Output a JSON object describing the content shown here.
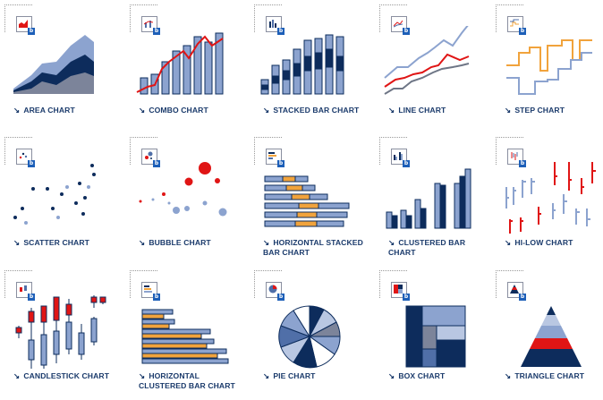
{
  "charts": [
    {
      "label": "AREA CHART",
      "icon": "area-chart-icon"
    },
    {
      "label": "COMBO CHART",
      "icon": "combo-chart-icon"
    },
    {
      "label": "STACKED BAR CHART",
      "icon": "stacked-bar-chart-icon"
    },
    {
      "label": "LINE CHART",
      "icon": "line-chart-icon"
    },
    {
      "label": "STEP CHART",
      "icon": "step-chart-icon"
    },
    {
      "label": "SCATTER CHART",
      "icon": "scatter-chart-icon"
    },
    {
      "label": "BUBBLE CHART",
      "icon": "bubble-chart-icon"
    },
    {
      "label": "HORIZONTAL STACKED BAR CHART",
      "icon": "horizontal-stacked-bar-chart-icon"
    },
    {
      "label": "CLUSTERED BAR CHART",
      "icon": "clustered-bar-chart-icon"
    },
    {
      "label": "HI-LOW CHART",
      "icon": "hi-low-chart-icon"
    },
    {
      "label": "CANDLESTICK CHART",
      "icon": "candlestick-chart-icon"
    },
    {
      "label": "HORIZONTAL CLUSTERED BAR CHART",
      "icon": "horizontal-clustered-bar-chart-icon"
    },
    {
      "label": "PIE CHART",
      "icon": "pie-chart-icon"
    },
    {
      "label": "BOX CHART",
      "icon": "box-chart-icon"
    },
    {
      "label": "TRIANGLE CHART",
      "icon": "triangle-chart-icon"
    }
  ],
  "arrow_glyph": "↘",
  "colors": {
    "navy": "#0d2c5c",
    "mid": "#506fa8",
    "light": "#8ca3cf",
    "pale": "#b9c7e2",
    "red": "#e01515",
    "orange": "#f1a33c",
    "gray": "#6e7686"
  }
}
